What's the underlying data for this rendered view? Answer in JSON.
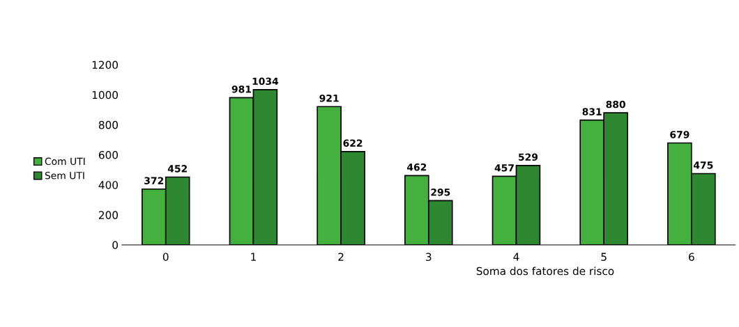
{
  "chart_data": {
    "type": "bar",
    "xlabel": "Soma dos fatores de risco",
    "categories": [
      "0",
      "1",
      "2",
      "3",
      "4",
      "5",
      "6"
    ],
    "series": [
      {
        "name": "Com UTI",
        "color": "#44b13f",
        "values": [
          372,
          981,
          921,
          462,
          457,
          831,
          679
        ]
      },
      {
        "name": "Sem UTI",
        "color": "#2e8832",
        "values": [
          452,
          1034,
          622,
          295,
          529,
          880,
          475
        ]
      }
    ],
    "ylim": [
      0,
      1200
    ],
    "yticks": [
      0,
      200,
      400,
      600,
      800,
      1000,
      1200
    ],
    "data_labels": true,
    "legend": "left",
    "grid": false
  }
}
